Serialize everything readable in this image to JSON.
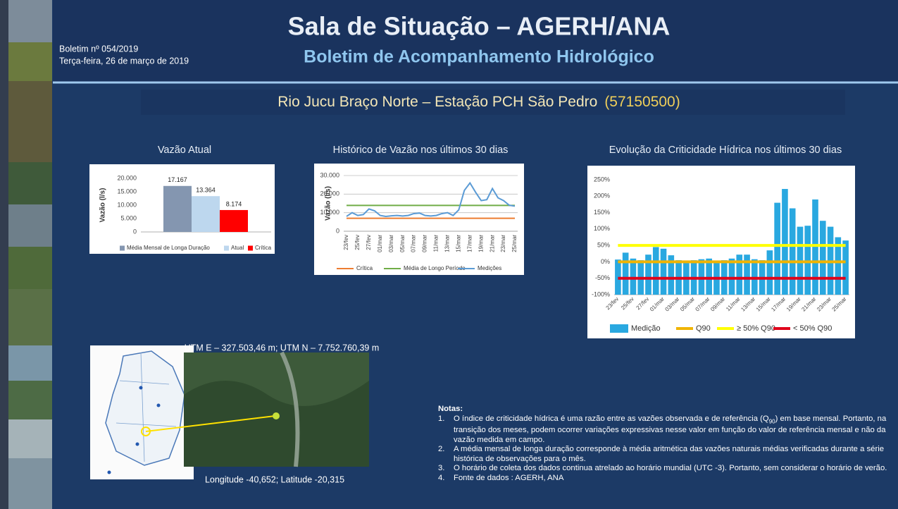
{
  "header": {
    "title": "Sala de Situação – AGERH/ANA",
    "subtitle": "Boletim de Acompanhamento Hidrológico",
    "bulletin": "Boletim nº 054/2019",
    "date": "Terça-feira, 26 de março de 2019"
  },
  "station": {
    "name": "Rio Jucu Braço Norte – Estação PCH São Pedro",
    "code": "(57150500)"
  },
  "chart_data": [
    {
      "type": "bar",
      "title": "Vazão Atual",
      "y_label": "Vazão (l/s)",
      "ylim": [
        0,
        20000
      ],
      "yticks": [
        0,
        {
          "value": 5000,
          "label": "5.000"
        },
        {
          "value": 10000,
          "label": "10.000"
        },
        {
          "value": 15000,
          "label": "15.000"
        },
        {
          "value": 20000,
          "label": "20.000"
        }
      ],
      "grid": false,
      "series": [
        {
          "name": "Média Mensal de Longa Duração",
          "color": "#8496b0",
          "values": [
            17167
          ],
          "value_labels": [
            "17.167"
          ]
        },
        {
          "name": "Atual",
          "color": "#bdd7ee",
          "values": [
            13364
          ],
          "value_labels": [
            "13.364"
          ]
        },
        {
          "name": "Crítica",
          "color": "#ff0000",
          "values": [
            8174
          ],
          "value_labels": [
            "8.174"
          ]
        }
      ]
    },
    {
      "type": "line",
      "title": "Histórico de Vazão nos últimos 30 dias",
      "y_label": "Vazão (l/s)",
      "ylim": [
        0,
        30000
      ],
      "yticks": [
        0,
        {
          "value": 10000,
          "label": "10.000"
        },
        {
          "value": 20000,
          "label": "20.000"
        },
        {
          "value": 30000,
          "label": "30.000"
        }
      ],
      "grid": true,
      "x": [
        "23/fev",
        null,
        "25/fev",
        null,
        "27/fev",
        null,
        "01/mar",
        null,
        "03/mar",
        null,
        "05/mar",
        null,
        "07/mar",
        null,
        "09/mar",
        null,
        "11/mar",
        null,
        "13/mar",
        null,
        "15/mar",
        null,
        "17/mar",
        null,
        "19/mar",
        null,
        "21/mar",
        null,
        "23/mar",
        null,
        "25/mar"
      ],
      "series": [
        {
          "name": "Crítica",
          "color": "#ed7d31",
          "values": [
            7000,
            7000,
            7000,
            7000,
            7000,
            7000,
            7000,
            7000,
            7000,
            7000,
            7000,
            7000,
            7000,
            7000,
            7000,
            7000,
            7000,
            7000,
            7000,
            7000,
            7000,
            7000,
            7000,
            7000,
            7000,
            7000,
            7000,
            7000,
            7000,
            7000,
            7000
          ]
        },
        {
          "name": "Média de Longo Período",
          "color": "#70ad47",
          "values": [
            13900,
            13900,
            13900,
            13900,
            13900,
            13900,
            13900,
            13900,
            13900,
            13900,
            13900,
            13900,
            13900,
            13900,
            13900,
            13900,
            13900,
            13900,
            13900,
            13900,
            13900,
            13900,
            13900,
            13900,
            13900,
            13900,
            13900,
            13900,
            13900,
            13900,
            13900
          ]
        },
        {
          "name": "Medições",
          "color": "#5b9bd5",
          "values": [
            8000,
            10000,
            8500,
            9000,
            12000,
            11000,
            8500,
            8000,
            8300,
            8500,
            8200,
            8500,
            9500,
            9800,
            8500,
            8200,
            8500,
            9500,
            10000,
            8500,
            11500,
            22000,
            26000,
            21000,
            16500,
            17000,
            23000,
            18000,
            16500,
            14000,
            13500
          ]
        }
      ]
    },
    {
      "type": "bar",
      "title": "Evolução da Criticidade Hídrica nos últimos 30 dias",
      "ylim": [
        -100,
        250
      ],
      "yticks": [
        {
          "value": -100,
          "label": "-100%"
        },
        {
          "value": -50,
          "label": "-50%"
        },
        {
          "value": 0,
          "label": "0%"
        },
        {
          "value": 50,
          "label": "50%"
        },
        {
          "value": 100,
          "label": "100%"
        },
        {
          "value": 150,
          "label": "150%"
        },
        {
          "value": 200,
          "label": "200%"
        },
        {
          "value": 250,
          "label": "250%"
        }
      ],
      "grid": false,
      "x": [
        "23/fev",
        null,
        "25/fev",
        null,
        "27/fev",
        null,
        "01/mar",
        null,
        "03/mar",
        null,
        "05/mar",
        null,
        "07/mar",
        null,
        "09/mar",
        null,
        "11/mar",
        null,
        "13/mar",
        null,
        "15/mar",
        null,
        "17/mar",
        null,
        "19/mar",
        null,
        "21/mar",
        null,
        "23/mar",
        null,
        "25/mar"
      ],
      "series": [
        {
          "name": "Medição",
          "color": "#29a8e0",
          "values": [
            7,
            28,
            10,
            5,
            22,
            45,
            40,
            20,
            5,
            3,
            5,
            8,
            10,
            3,
            5,
            10,
            22,
            22,
            8,
            5,
            35,
            180,
            222,
            163,
            107,
            110,
            190,
            125,
            107,
            75,
            65
          ]
        },
        {
          "name": "Q90",
          "kind": "line",
          "color": "#f0b400",
          "values": [
            0,
            0,
            0,
            0,
            0,
            0,
            0,
            0,
            0,
            0,
            0,
            0,
            0,
            0,
            0,
            0,
            0,
            0,
            0,
            0,
            0,
            0,
            0,
            0,
            0,
            0,
            0,
            0,
            0,
            0,
            0
          ]
        },
        {
          "name": "≥ 50% Q90",
          "kind": "line",
          "color": "#ffff00",
          "values": [
            50,
            50,
            50,
            50,
            50,
            50,
            50,
            50,
            50,
            50,
            50,
            50,
            50,
            50,
            50,
            50,
            50,
            50,
            50,
            50,
            50,
            50,
            50,
            50,
            50,
            50,
            50,
            50,
            50,
            50,
            50
          ]
        },
        {
          "name": "< 50% Q90",
          "kind": "line",
          "color": "#e0001a",
          "values": [
            -50,
            -50,
            -50,
            -50,
            -50,
            -50,
            -50,
            -50,
            -50,
            -50,
            -50,
            -50,
            -50,
            -50,
            -50,
            -50,
            -50,
            -50,
            -50,
            -50,
            -50,
            -50,
            -50,
            -50,
            -50,
            -50,
            -50,
            -50,
            -50,
            -50,
            -50
          ]
        }
      ]
    }
  ],
  "map": {
    "utm": "UTM E – 327.503,46 m; UTM N – 7.752.760,39 m",
    "coords": "Longitude -40,652; Latitude -20,315"
  },
  "notes": {
    "title": "Notas:",
    "items": [
      {
        "number": "1.",
        "text": "O índice de criticidade hídrica é uma razão entre as vazões observada e de referência (Q",
        "sub": "90",
        "text2": ") em base mensal. Portanto, na transição dos meses, podem ocorrer variações expressivas nesse valor  em função do valor de referência mensal e não da vazão medida em campo."
      },
      {
        "number": "2.",
        "text": "A média mensal de longa duração corresponde à média aritmética das vazões naturais médias verificadas durante a série histórica de observações para o mês."
      },
      {
        "number": "3.",
        "text": "O horário de coleta dos dados continua atrelado ao horário mundial (UTC -3). Portanto, sem considerar o horário de verão."
      },
      {
        "number": "4.",
        "text": "Fonte de dados : AGERH, ANA"
      }
    ]
  }
}
